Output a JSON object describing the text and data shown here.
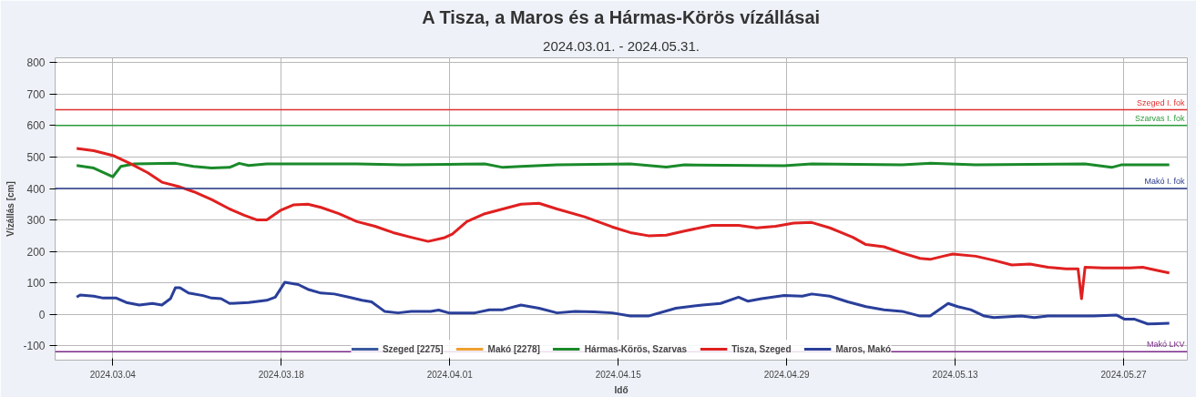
{
  "chart_data": {
    "type": "line",
    "title": "A Tisza, a Maros és a Hármas-Körös vízállásai",
    "subtitle": "2024.03.01. - 2024.05.31.",
    "xlabel": "Idő",
    "ylabel": "Vízállás [cm]",
    "xlim": [
      "2024-02-28T05:00",
      "2024-06-01T07:00"
    ],
    "xticks": [
      {
        "value": "2024-03-04",
        "label": "2024.03.04"
      },
      {
        "value": "2024-03-18",
        "label": "2024.03.18"
      },
      {
        "value": "2024-04-01",
        "label": "2024.04.01"
      },
      {
        "value": "2024-04-15",
        "label": "2024.04.15"
      },
      {
        "value": "2024-04-29",
        "label": "2024.04.29"
      },
      {
        "value": "2024-05-13",
        "label": "2024.05.13"
      },
      {
        "value": "2024-05-27",
        "label": "2024.05.27"
      }
    ],
    "ylim": [
      -145,
      815
    ],
    "yticks": [
      -100,
      0,
      100,
      200,
      300,
      400,
      500,
      600,
      700,
      800
    ],
    "grid": true,
    "legend": "bottom",
    "marker": "none",
    "line_style": "solid",
    "ref_lines": [
      {
        "axis": "y",
        "value": 650,
        "label": "Szeged I. fok",
        "color": "#e03030"
      },
      {
        "axis": "y",
        "value": 600,
        "label": "Szarvas I. fok",
        "color": "#2a9a3a"
      },
      {
        "axis": "y",
        "value": 400,
        "label": "Makó I. fok",
        "color": "#2a3a8a"
      },
      {
        "axis": "y",
        "value": -118,
        "label": "Makó LKV",
        "color": "#7a2a8a"
      }
    ],
    "series": [
      {
        "name": "Szeged [2275]",
        "color": "#3a5aa0"
      },
      {
        "name": "Makó [2278]",
        "color": "#f0a030"
      },
      {
        "name": "Hármas-Körös, Szarvas",
        "color": "#1a8a2a",
        "x": [
          "2024-03-01",
          "2024-03-02T10:00",
          "2024-03-04",
          "2024-03-04T16:00",
          "2024-03-05T19:00",
          "2024-03-09T05:00",
          "2024-03-10T17:00",
          "2024-03-12T05:00",
          "2024-03-13T17:00",
          "2024-03-14T12:00",
          "2024-03-15T07:00",
          "2024-03-16T19:00",
          "2024-03-20T12:00",
          "2024-03-24T07:00",
          "2024-03-28T02:00",
          "2024-03-31T22:00",
          "2024-04-03T22:00",
          "2024-04-05T10:00",
          "2024-04-06T22:00",
          "2024-04-09T22:00",
          "2024-04-16",
          "2024-04-19",
          "2024-04-20T12:00",
          "2024-04-28T19:00",
          "2024-05-01T02:00",
          "2024-05-08T14:00",
          "2024-05-10T22:00",
          "2024-05-14T17:00",
          "2024-05-23T19:00",
          "2024-05-26",
          "2024-05-26T19:00",
          "2024-05-30T19:00"
        ],
        "values": [
          473,
          465,
          437,
          470,
          478,
          480,
          470,
          465,
          467,
          480,
          473,
          478,
          478,
          478,
          475,
          477,
          478,
          467,
          470,
          475,
          478,
          468,
          475,
          472,
          478,
          475,
          480,
          475,
          478,
          467,
          475,
          475
        ]
      },
      {
        "name": "Tisza, Szeged",
        "color": "#e02020",
        "x": [
          "2024-03-01",
          "2024-03-02T10:00",
          "2024-03-04",
          "2024-03-05T10:00",
          "2024-03-06T22:00",
          "2024-03-08T02:00",
          "2024-03-09T14:00",
          "2024-03-10T17:00",
          "2024-03-12T05:00",
          "2024-03-13T17:00",
          "2024-03-14T22:00",
          "2024-03-16",
          "2024-03-16T19:00",
          "2024-03-17T22:00",
          "2024-03-19",
          "2024-03-20T05:00",
          "2024-03-21T07:00",
          "2024-03-22T19:00",
          "2024-03-24T07:00",
          "2024-03-25T19:00",
          "2024-03-27T07:00",
          "2024-03-28T19:00",
          "2024-03-30T05:00",
          "2024-03-31T12:00",
          "2024-04-01T05:00",
          "2024-04-02T10:00",
          "2024-04-03T22:00",
          "2024-04-05T10:00",
          "2024-04-06T22:00",
          "2024-04-08T10:00",
          "2024-04-09T22:00",
          "2024-04-12T05:00",
          "2024-04-14T12:00",
          "2024-04-16",
          "2024-04-17T12:00",
          "2024-04-19",
          "2024-04-20T12:00",
          "2024-04-22T19:00",
          "2024-04-25",
          "2024-04-26T12:00",
          "2024-04-28T02:00",
          "2024-04-29T14:00",
          "2024-05-01T02:00",
          "2024-05-02T14:00",
          "2024-05-04T12:00",
          "2024-05-05T14:00",
          "2024-05-07T02:00",
          "2024-05-08T14:00",
          "2024-05-10T02:00",
          "2024-05-10T22:00",
          "2024-05-12",
          "2024-05-12T19:00",
          "2024-05-14T17:00",
          "2024-05-16T05:00",
          "2024-05-17T17:00",
          "2024-05-19T05:00",
          "2024-05-20T17:00",
          "2024-05-22T05:00",
          "2024-05-23T05:00",
          "2024-05-23T12:00",
          "2024-05-23T19:00",
          "2024-05-25T07:00",
          "2024-05-27T12:00",
          "2024-05-28T14:00",
          "2024-05-29T19:00",
          "2024-05-30T19:00"
        ],
        "values": [
          527,
          520,
          505,
          480,
          450,
          420,
          405,
          390,
          365,
          335,
          315,
          300,
          300,
          330,
          348,
          350,
          340,
          320,
          295,
          280,
          260,
          245,
          232,
          243,
          255,
          295,
          320,
          335,
          350,
          353,
          335,
          310,
          278,
          260,
          250,
          252,
          265,
          283,
          283,
          275,
          280,
          290,
          292,
          275,
          245,
          222,
          215,
          195,
          178,
          175,
          185,
          192,
          185,
          172,
          157,
          160,
          150,
          145,
          145,
          50,
          150,
          148,
          148,
          150,
          140,
          132
        ]
      },
      {
        "name": "Maros, Makó",
        "color": "#2a3f9a",
        "x": [
          "2024-03-01",
          "2024-03-01T07:00",
          "2024-03-02T10:00",
          "2024-03-03T05:00",
          "2024-03-04T07:00",
          "2024-03-05T03:00",
          "2024-03-06T05:00",
          "2024-03-07T07:00",
          "2024-03-08T02:00",
          "2024-03-08T19:00",
          "2024-03-09T05:00",
          "2024-03-09T14:00",
          "2024-03-10T07:00",
          "2024-03-11T12:00",
          "2024-03-12T05:00",
          "2024-03-13",
          "2024-03-13T17:00",
          "2024-03-15T07:00",
          "2024-03-16T19:00",
          "2024-03-17T12:00",
          "2024-03-18T07:00",
          "2024-03-19T10:00",
          "2024-03-20T05:00",
          "2024-03-21T07:00",
          "2024-03-22T10:00",
          "2024-03-23T14:00",
          "2024-03-24T17:00",
          "2024-03-25T12:00",
          "2024-03-26T14:00",
          "2024-03-27T17:00",
          "2024-03-28T19:00",
          "2024-03-30T10:00",
          "2024-03-31T02:00",
          "2024-03-31T22:00",
          "2024-04-03T02:00",
          "2024-04-04T07:00",
          "2024-04-05T10:00",
          "2024-04-06T22:00",
          "2024-04-08T10:00",
          "2024-04-09T22:00",
          "2024-04-11T10:00",
          "2024-04-13",
          "2024-04-14T12:00",
          "2024-04-16",
          "2024-04-17T12:00",
          "2024-04-19T19:00",
          "2024-04-22",
          "2024-04-23T12:00",
          "2024-04-25",
          "2024-04-25T19:00",
          "2024-04-26T22:00",
          "2024-04-28T19:00",
          "2024-04-30T07:00",
          "2024-05-01T02:00",
          "2024-05-02T14:00",
          "2024-05-04T02:00",
          "2024-05-05T14:00",
          "2024-05-07T02:00",
          "2024-05-08T14:00",
          "2024-05-10T02:00",
          "2024-05-10T22:00",
          "2024-05-12T10:00",
          "2024-05-13T05:00",
          "2024-05-14T07:00",
          "2024-05-15T10:00",
          "2024-05-16T05:00",
          "2024-05-18T12:00",
          "2024-05-19T14:00",
          "2024-05-20T17:00",
          "2024-05-23",
          "2024-05-24T12:00",
          "2024-05-26T10:00",
          "2024-05-27T02:00",
          "2024-05-27T22:00",
          "2024-05-29",
          "2024-05-30T19:00"
        ],
        "values": [
          55,
          62,
          58,
          52,
          52,
          38,
          30,
          35,
          30,
          50,
          85,
          85,
          68,
          60,
          52,
          50,
          35,
          38,
          45,
          55,
          102,
          95,
          80,
          68,
          65,
          55,
          45,
          40,
          10,
          5,
          10,
          10,
          14,
          5,
          5,
          15,
          15,
          30,
          20,
          5,
          10,
          8,
          5,
          -5,
          -5,
          20,
          30,
          35,
          55,
          42,
          50,
          60,
          58,
          65,
          58,
          40,
          25,
          15,
          10,
          -5,
          -5,
          35,
          25,
          15,
          -5,
          -10,
          -5,
          -10,
          -5,
          -5,
          -5,
          -2,
          -15,
          -15,
          -30,
          -28
        ]
      }
    ]
  }
}
